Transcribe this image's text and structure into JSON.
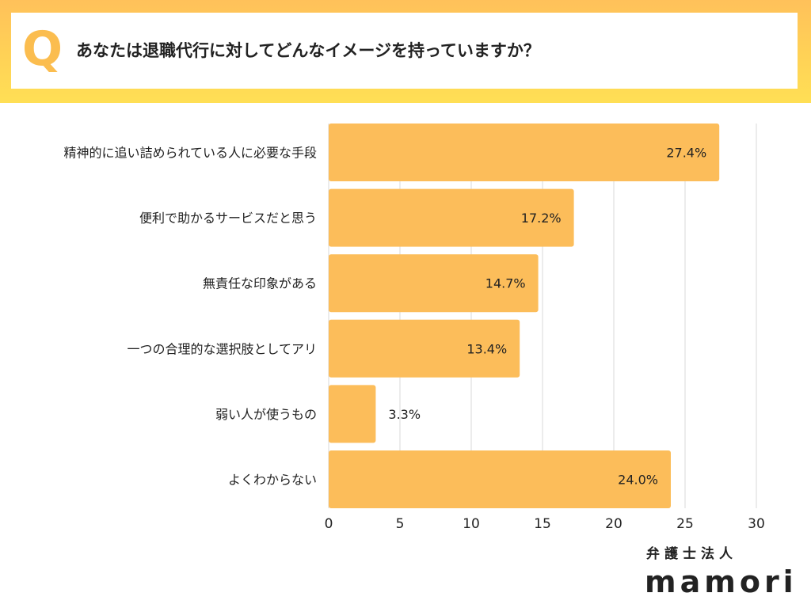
{
  "header": {
    "q_mark": "Q",
    "question": "あなたは退職代行に対してどんなイメージを持っていますか？"
  },
  "brand": {
    "subtitle": "弁護士法人",
    "name": "mamori"
  },
  "colors": {
    "bar": "#fcbd5a",
    "header_gradient_top": "#ffc15a",
    "header_gradient_bottom": "#ffdf55",
    "q_mark": "#fbbd4f",
    "grid": "#d9d9d9"
  },
  "chart_data": {
    "type": "bar",
    "orientation": "horizontal",
    "title": "",
    "xlabel": "",
    "ylabel": "",
    "categories": [
      "精神的に追い詰められている人に必要な手段",
      "便利で助かるサービスだと思う",
      "無責任な印象がある",
      "一つの合理的な選択肢としてアリ",
      "弱い人が使うもの",
      "よくわからない"
    ],
    "values": [
      27.4,
      17.2,
      14.7,
      13.4,
      3.3,
      24.0
    ],
    "value_labels": [
      "27.4%",
      "17.2%",
      "14.7%",
      "13.4%",
      "3.3%",
      "24.0%"
    ],
    "xlim": [
      0,
      30
    ],
    "xticks": [
      0,
      5,
      10,
      15,
      20,
      25,
      30
    ],
    "grid": true,
    "legend": "none"
  }
}
